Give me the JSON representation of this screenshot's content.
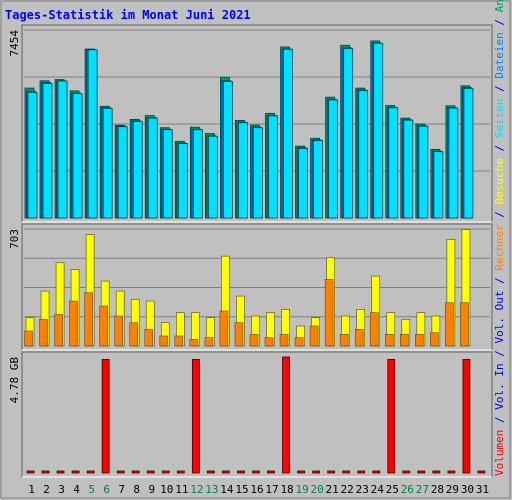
{
  "chart_data": {
    "type": "bar",
    "title": "Tages-Statistik im Monat Juni 2021",
    "categories": [
      "1",
      "2",
      "3",
      "4",
      "5",
      "6",
      "7",
      "8",
      "9",
      "10",
      "11",
      "12",
      "13",
      "14",
      "15",
      "16",
      "17",
      "18",
      "19",
      "20",
      "21",
      "22",
      "23",
      "24",
      "25",
      "26",
      "27",
      "28",
      "29",
      "30",
      "31"
    ],
    "weekend_days": [
      "5",
      "6",
      "12",
      "13",
      "19",
      "20",
      "26",
      "27"
    ],
    "panels": [
      {
        "id": "top",
        "ylabel": "7454",
        "ymax": 7454,
        "grid": true,
        "series": [
          {
            "name": "Anfragen",
            "color": "#00a060",
            "values": [
              5150,
              5440,
              5490,
              5040,
              6700,
              4430,
              3680,
              3910,
              4060,
              3580,
              3040,
              3600,
              3350,
              5580,
              3870,
              3680,
              4150,
              6780,
              2850,
              3160,
              4790,
              6850,
              5150,
              7020,
              4460,
              3960,
              3730,
              2720,
              4450,
              5240,
              0
            ]
          },
          {
            "name": "Dateien",
            "color": "#0080ff",
            "values": [
              5030,
              5370,
              5440,
              4950,
              6680,
              4370,
              3640,
              3850,
              3990,
              3520,
              2970,
              3520,
              3260,
              5440,
              3800,
              3600,
              4070,
              6700,
              2790,
              3090,
              4710,
              6750,
              5080,
              6940,
              4390,
              3900,
              3660,
              2650,
              4380,
              5170,
              0
            ]
          },
          {
            "name": "Seiten",
            "color": "#00e0ff",
            "values": [
              4980,
              5330,
              5430,
              4930,
              6670,
              4350,
              3620,
              3830,
              3960,
              3500,
              2950,
              3500,
              3240,
              5410,
              3780,
              3580,
              4050,
              6690,
              2760,
              3070,
              4680,
              6720,
              5050,
              6930,
              4370,
              3880,
              3640,
              2630,
              4360,
              5140,
              0
            ]
          }
        ]
      },
      {
        "id": "middle",
        "ylabel": "703",
        "ymax": 703,
        "grid": true,
        "series": [
          {
            "name": "Besuche",
            "color": "#ffff00",
            "values": [
              170,
              330,
              500,
              460,
              670,
              390,
              330,
              280,
              270,
              140,
              200,
              200,
              170,
              540,
              300,
              180,
              200,
              220,
              120,
              170,
              530,
              180,
              220,
              420,
              200,
              160,
              200,
              180,
              640,
              700,
              0
            ]
          },
          {
            "name": "Rechner",
            "color": "#ff8000",
            "values": [
              90,
              160,
              190,
              270,
              320,
              240,
              180,
              140,
              100,
              60,
              60,
              40,
              50,
              210,
              140,
              70,
              50,
              70,
              50,
              120,
              400,
              70,
              100,
              200,
              70,
              70,
              70,
              80,
              260,
              260,
              0
            ]
          }
        ]
      },
      {
        "id": "bottom",
        "ylabel": "4.78 GB",
        "ymax": 4.78,
        "grid": false,
        "series": [
          {
            "name": "Vol. Out",
            "color": "#0000ff",
            "values": []
          },
          {
            "name": "Vol. In",
            "color": "#0000ff",
            "values": []
          },
          {
            "name": "Volumen",
            "color": "#ff0000",
            "values": [
              0.02,
              0.08,
              0.02,
              0.08,
              0.02,
              4.68,
              0.02,
              0.08,
              0.02,
              0.02,
              0.02,
              4.68,
              0.02,
              0.02,
              0.02,
              0.02,
              0.02,
              4.78,
              0.02,
              0.02,
              0.02,
              0.08,
              0.02,
              0.02,
              4.68,
              0.02,
              0.02,
              0.02,
              0.02,
              4.68,
              0.02
            ]
          }
        ]
      }
    ],
    "right_legend": [
      {
        "text": "Volumen",
        "color": "#ff0000"
      },
      {
        "text": "/",
        "color": "#0000ff"
      },
      {
        "text": "Vol. In",
        "color": "#0000ff"
      },
      {
        "text": "/",
        "color": "#0000ff"
      },
      {
        "text": "Vol. Out",
        "color": "#0000ff"
      },
      {
        "text": "/",
        "color": "#0000ff"
      },
      {
        "text": "Rechner",
        "color": "#ff8000"
      },
      {
        "text": "/",
        "color": "#0000ff"
      },
      {
        "text": "Besuche",
        "color": "#ffff00"
      },
      {
        "text": "/",
        "color": "#0000ff"
      },
      {
        "text": "Seiten",
        "color": "#00e0ff"
      },
      {
        "text": "/",
        "color": "#0000ff"
      },
      {
        "text": "Dateien",
        "color": "#0080ff"
      },
      {
        "text": "/",
        "color": "#0000ff"
      },
      {
        "text": "Anfragen",
        "color": "#00a060"
      }
    ],
    "colors": {
      "title": "#0000ff",
      "weekday_tick": "#000000",
      "weekend_tick": "#008040",
      "background": "#c0c0c0",
      "grid": "#808080"
    }
  }
}
